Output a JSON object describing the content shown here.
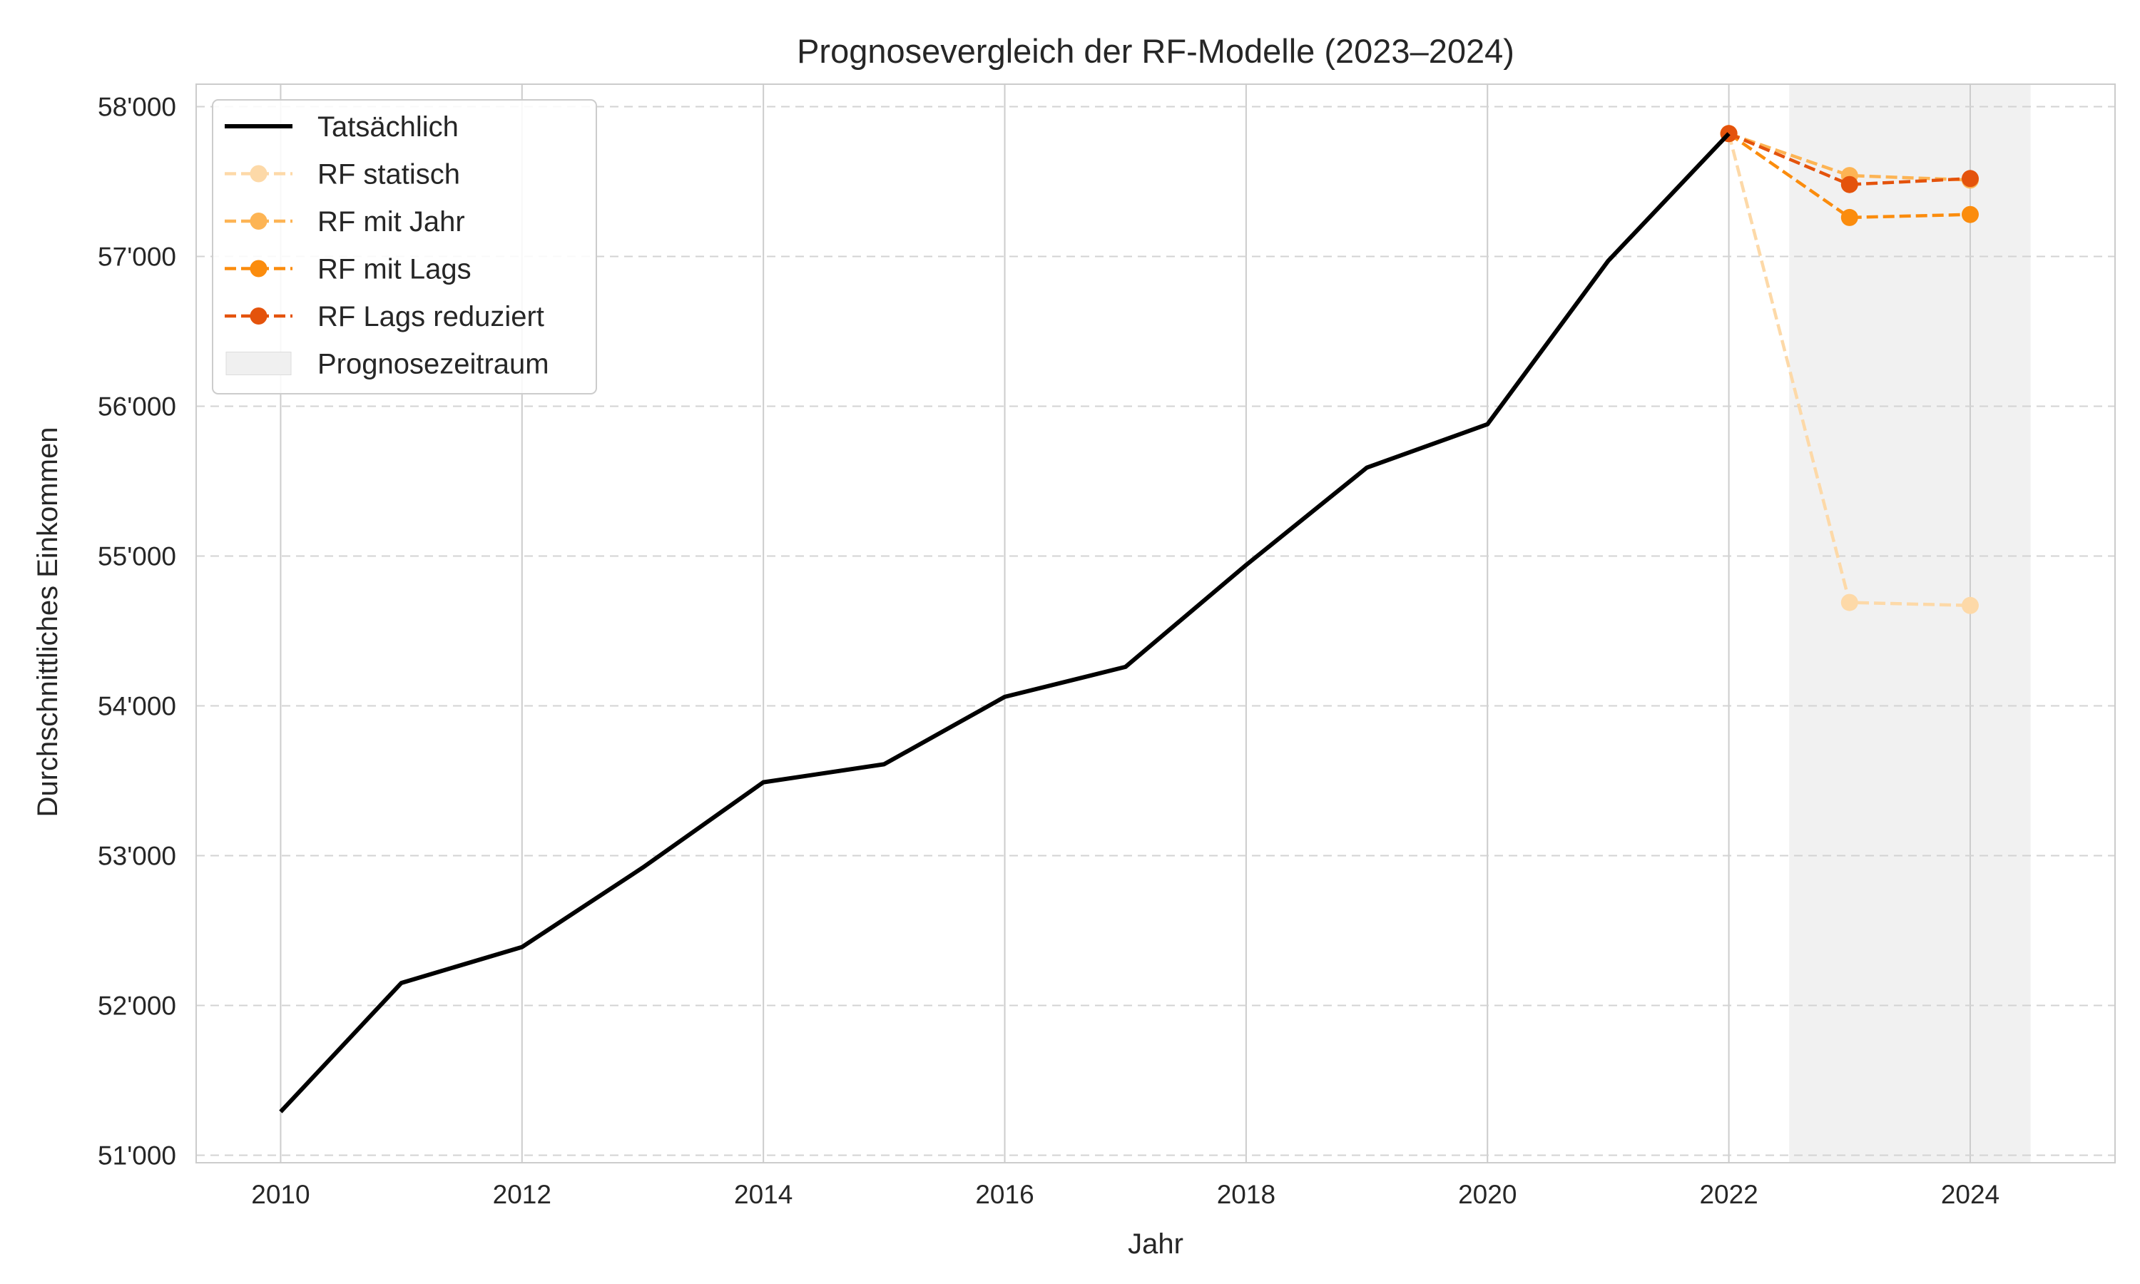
{
  "chart_data": {
    "type": "line",
    "title": "Prognosevergleich der RF-Modelle (2023–2024)",
    "xlabel": "Jahr",
    "ylabel": "Durchschnittliches Einkommen",
    "xlim": [
      2009.3,
      2025.2
    ],
    "ylim": [
      50950,
      58150
    ],
    "x_ticks": [
      2010,
      2012,
      2014,
      2016,
      2018,
      2020,
      2022,
      2024
    ],
    "x_tick_labels": [
      "2010",
      "2012",
      "2014",
      "2016",
      "2018",
      "2020",
      "2022",
      "2024"
    ],
    "y_ticks": [
      51000,
      52000,
      53000,
      54000,
      55000,
      56000,
      57000,
      58000
    ],
    "y_tick_labels": [
      "51'000",
      "52'000",
      "53'000",
      "54'000",
      "55'000",
      "56'000",
      "57'000",
      "58'000"
    ],
    "grid": true,
    "legend_position": "top-left",
    "forecast_span": {
      "name": "Prognosezeitraum",
      "x_start": 2022.5,
      "x_end": 2024.5,
      "color": "#f0f0f0"
    },
    "series": [
      {
        "name": "Tatsächlich",
        "style": "solid",
        "markers": false,
        "color": "#000000",
        "x": [
          2010,
          2011,
          2012,
          2013,
          2014,
          2015,
          2016,
          2017,
          2018,
          2019,
          2020,
          2021,
          2022
        ],
        "y": [
          51290,
          52150,
          52390,
          52920,
          53490,
          53610,
          54060,
          54260,
          54940,
          55590,
          55880,
          56970,
          57820
        ]
      },
      {
        "name": "RF statisch",
        "style": "dashed",
        "markers": true,
        "color": "#fdd9a8",
        "x": [
          2022,
          2023,
          2024
        ],
        "y": [
          57820,
          54690,
          54670
        ]
      },
      {
        "name": "RF mit Jahr",
        "style": "dashed",
        "markers": true,
        "color": "#fdb454",
        "x": [
          2022,
          2023,
          2024
        ],
        "y": [
          57820,
          57540,
          57510
        ]
      },
      {
        "name": "RF mit Lags",
        "style": "dashed",
        "markers": true,
        "color": "#fb8c0d",
        "x": [
          2022,
          2023,
          2024
        ],
        "y": [
          57820,
          57260,
          57280
        ]
      },
      {
        "name": "RF Lags reduziert",
        "style": "dashed",
        "markers": true,
        "color": "#e4530c",
        "x": [
          2022,
          2023,
          2024
        ],
        "y": [
          57820,
          57480,
          57520
        ]
      }
    ]
  }
}
